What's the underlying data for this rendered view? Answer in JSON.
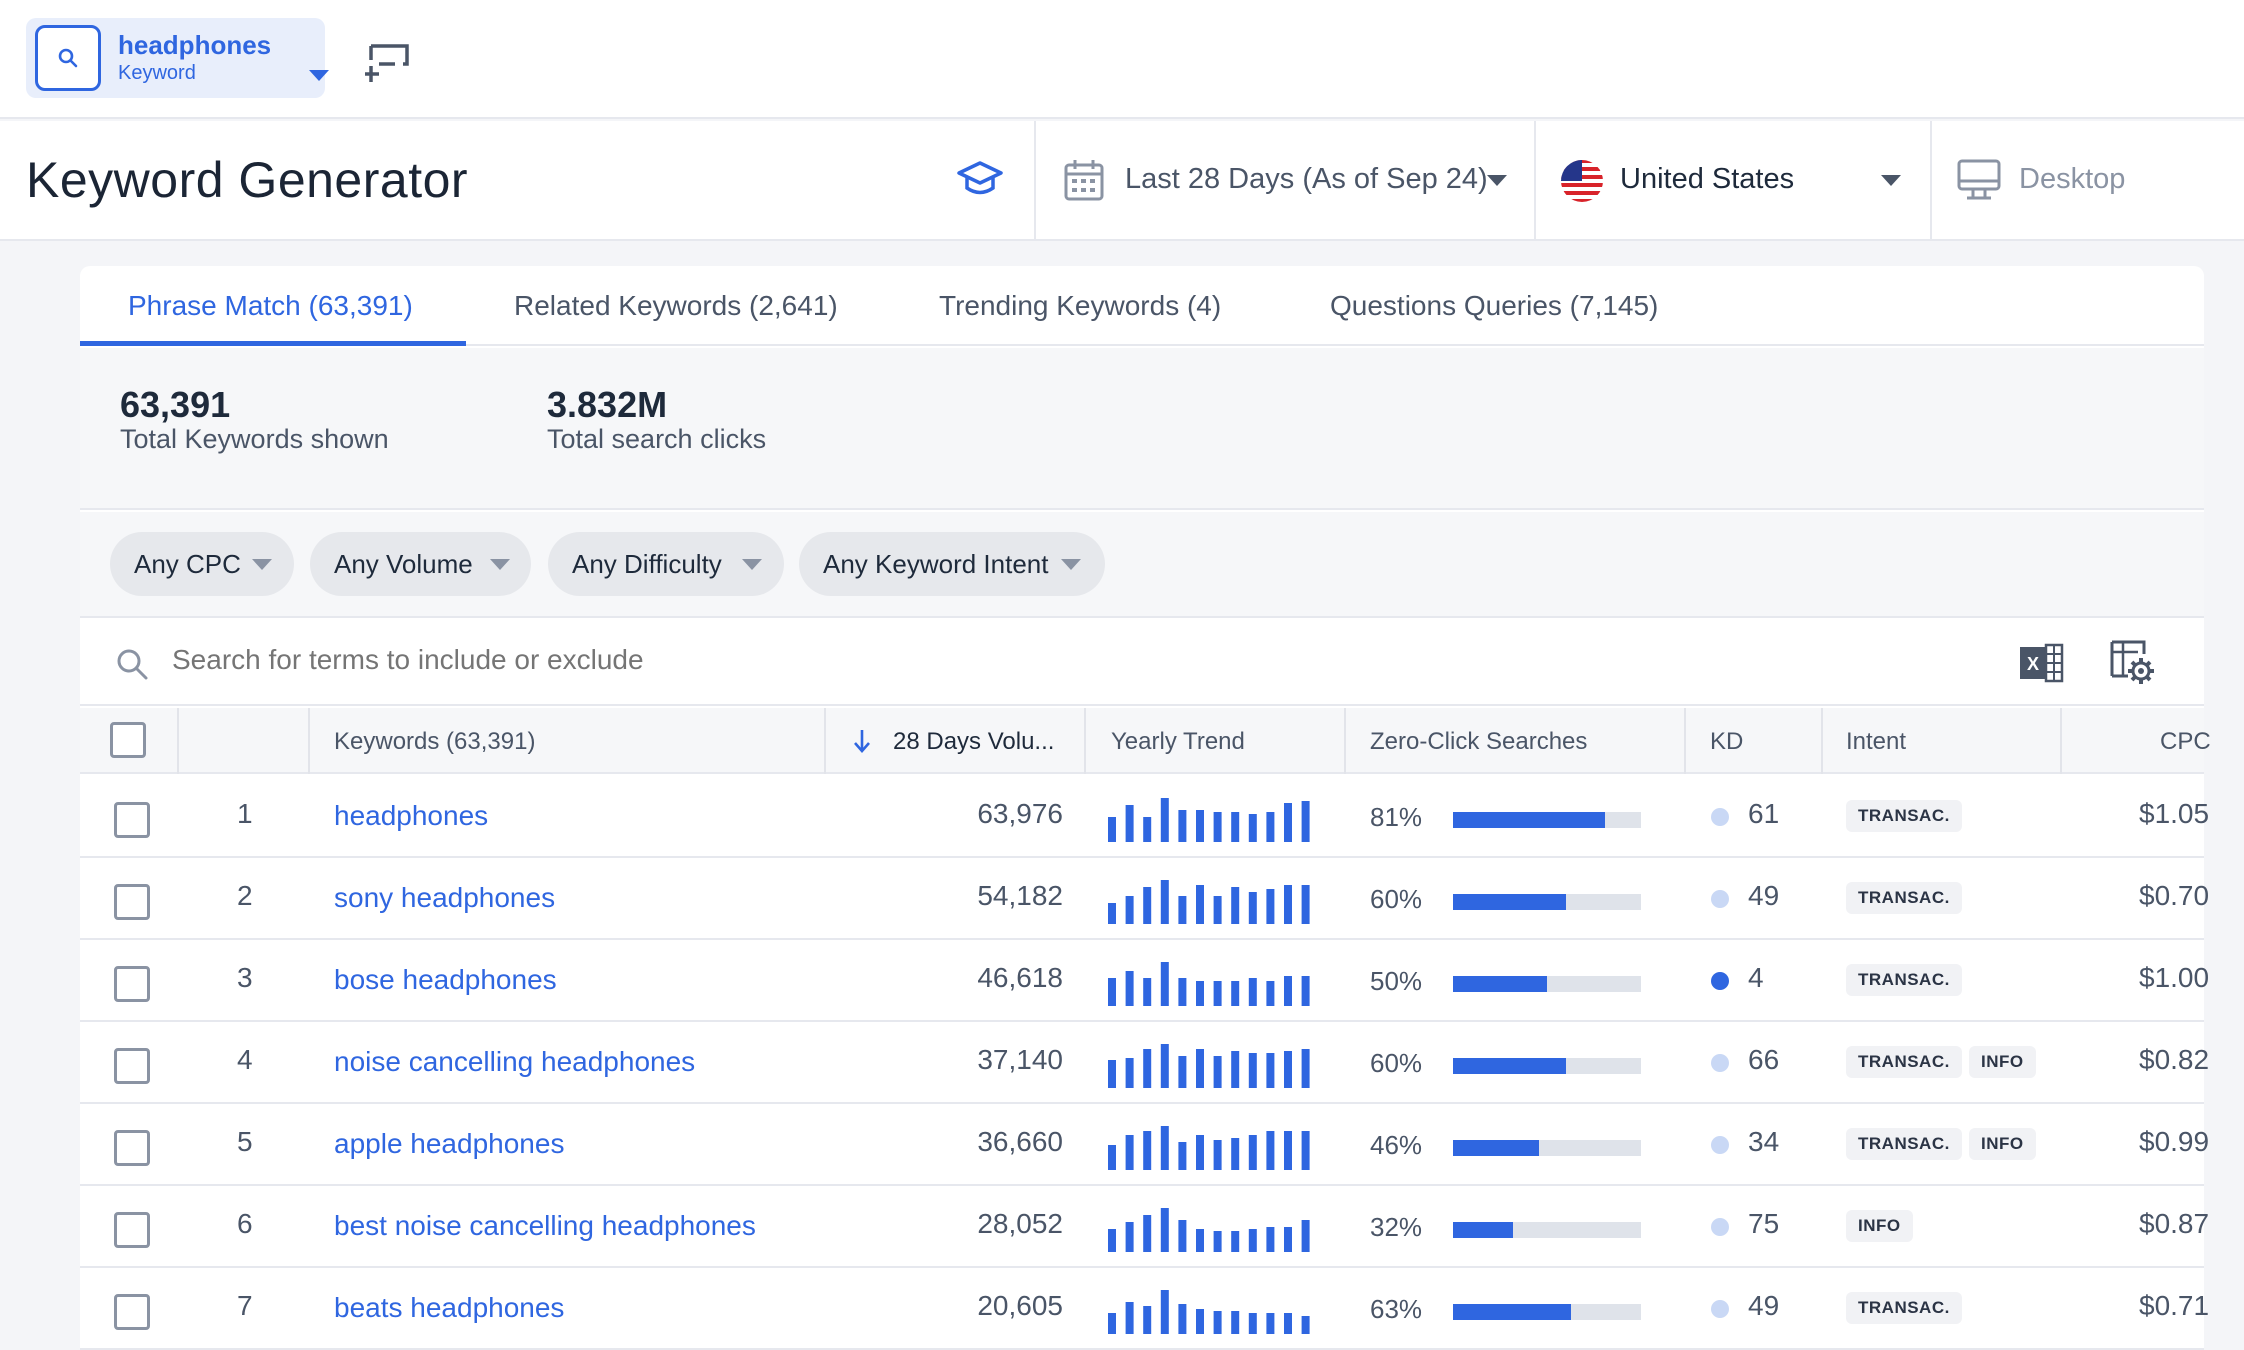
{
  "topbar": {
    "keyword": "headphones",
    "keyword_type": "Keyword"
  },
  "header": {
    "title": "Keyword Generator",
    "date_range": "Last 28 Days (As of Sep 24)",
    "country": "United States",
    "device": "Desktop"
  },
  "tabs": [
    {
      "label": "Phrase Match (63,391)",
      "active": true
    },
    {
      "label": "Related Keywords (2,641)",
      "active": false
    },
    {
      "label": "Trending Keywords (4)",
      "active": false
    },
    {
      "label": "Questions Queries (7,145)",
      "active": false
    }
  ],
  "summary": {
    "keywords_value": "63,391",
    "keywords_label": "Total Keywords shown",
    "clicks_value": "3.832M",
    "clicks_label": "Total search clicks"
  },
  "filters": [
    "Any CPC",
    "Any Volume",
    "Any Difficulty",
    "Any Keyword Intent"
  ],
  "search": {
    "placeholder": "Search for terms to include or exclude"
  },
  "columns": {
    "keywords": "Keywords (63,391)",
    "volume": "28 Days Volu...",
    "trend": "Yearly Trend",
    "zero_click": "Zero-Click Searches",
    "kd": "KD",
    "intent": "Intent",
    "cpc": "CPC"
  },
  "colors": {
    "accent": "#2f66e0",
    "kd_easy": "#2f66e0",
    "kd_other": "#c9d8f5"
  },
  "rows": [
    {
      "rank": "1",
      "keyword": "headphones",
      "volume": "63,976",
      "trend": [
        0.55,
        0.8,
        0.55,
        0.95,
        0.7,
        0.7,
        0.65,
        0.65,
        0.6,
        0.65,
        0.85,
        0.9
      ],
      "zero_click": "81%",
      "zero_click_value": 0.81,
      "kd": "61",
      "kd_easy": false,
      "intent": [
        "TRANSAC."
      ],
      "cpc": "$1.05"
    },
    {
      "rank": "2",
      "keyword": "sony headphones",
      "volume": "54,182",
      "trend": [
        0.45,
        0.6,
        0.8,
        0.95,
        0.6,
        0.85,
        0.6,
        0.8,
        0.7,
        0.75,
        0.85,
        0.85
      ],
      "zero_click": "60%",
      "zero_click_value": 0.6,
      "kd": "49",
      "kd_easy": false,
      "intent": [
        "TRANSAC."
      ],
      "cpc": "$0.70"
    },
    {
      "rank": "3",
      "keyword": "bose headphones",
      "volume": "46,618",
      "trend": [
        0.6,
        0.75,
        0.6,
        0.95,
        0.6,
        0.55,
        0.55,
        0.55,
        0.6,
        0.55,
        0.65,
        0.65
      ],
      "zero_click": "50%",
      "zero_click_value": 0.5,
      "kd": "4",
      "kd_easy": true,
      "intent": [
        "TRANSAC."
      ],
      "cpc": "$1.00"
    },
    {
      "rank": "4",
      "keyword": "noise cancelling headphones",
      "volume": "37,140",
      "trend": [
        0.6,
        0.65,
        0.85,
        0.95,
        0.7,
        0.85,
        0.7,
        0.8,
        0.75,
        0.75,
        0.8,
        0.85
      ],
      "zero_click": "60%",
      "zero_click_value": 0.6,
      "kd": "66",
      "kd_easy": false,
      "intent": [
        "TRANSAC.",
        "INFO"
      ],
      "cpc": "$0.82"
    },
    {
      "rank": "5",
      "keyword": "apple headphones",
      "volume": "36,660",
      "trend": [
        0.55,
        0.75,
        0.85,
        0.95,
        0.6,
        0.75,
        0.65,
        0.7,
        0.75,
        0.85,
        0.85,
        0.85
      ],
      "zero_click": "46%",
      "zero_click_value": 0.46,
      "kd": "34",
      "kd_easy": false,
      "intent": [
        "TRANSAC.",
        "INFO"
      ],
      "cpc": "$0.99"
    },
    {
      "rank": "6",
      "keyword": "best noise cancelling headphones",
      "volume": "28,052",
      "trend": [
        0.5,
        0.65,
        0.8,
        0.95,
        0.7,
        0.5,
        0.45,
        0.45,
        0.5,
        0.55,
        0.55,
        0.7
      ],
      "zero_click": "32%",
      "zero_click_value": 0.32,
      "kd": "75",
      "kd_easy": false,
      "intent": [
        "INFO"
      ],
      "cpc": "$0.87"
    },
    {
      "rank": "7",
      "keyword": "beats headphones",
      "volume": "20,605",
      "trend": [
        0.45,
        0.7,
        0.6,
        0.95,
        0.65,
        0.55,
        0.5,
        0.5,
        0.45,
        0.45,
        0.45,
        0.4
      ],
      "zero_click": "63%",
      "zero_click_value": 0.63,
      "kd": "49",
      "kd_easy": false,
      "intent": [
        "TRANSAC."
      ],
      "cpc": "$0.71"
    }
  ]
}
